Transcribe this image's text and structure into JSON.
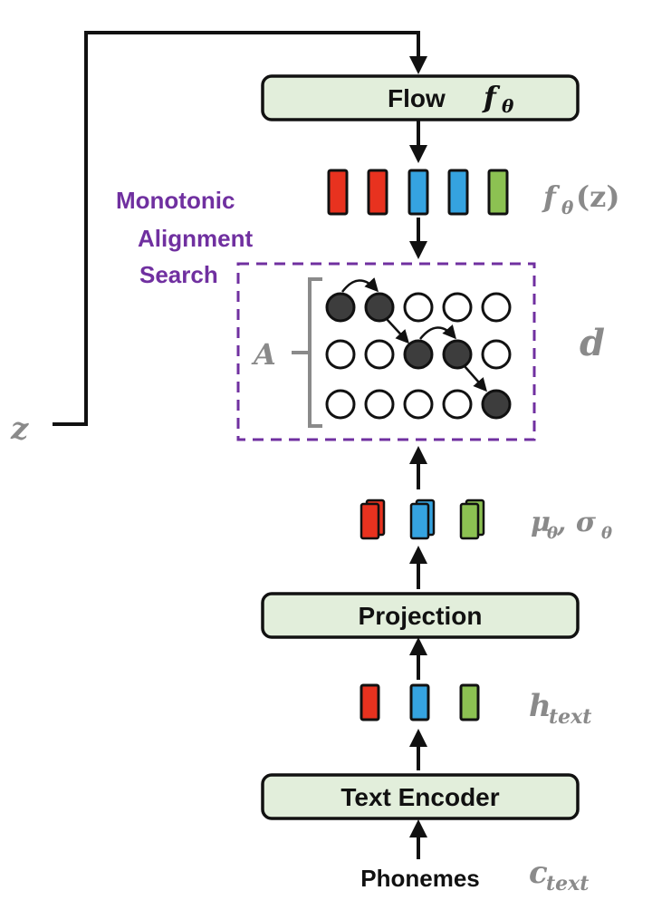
{
  "boxes": {
    "flow": "Flow",
    "flow_symbol": "f",
    "flow_symbol_sub": "θ",
    "projection": "Projection",
    "text_encoder": "Text Encoder"
  },
  "labels": {
    "z": "z",
    "fz_f": "f",
    "fz_theta": "θ",
    "fz_arg": "(z)",
    "mas_line1": "Monotonic",
    "mas_line2": "Alignment",
    "mas_line3": "Search",
    "A": "A",
    "d": "d",
    "mu": "μ",
    "mu_sub": "θ",
    "sigma": ", σ",
    "sigma_sub": "θ",
    "h": "h",
    "h_sub": "text",
    "c": "c",
    "c_sub": "text",
    "phonemes": "Phonemes"
  },
  "colors": {
    "red": "#e8321f",
    "blue": "#35a3e0",
    "green": "#8cc152",
    "box_fill": "#e2eedb",
    "purple": "#7030a0",
    "gray": "#8a8a8a",
    "circle_filled": "#3d3d3d"
  },
  "alignment_matrix": [
    [
      1,
      1,
      0,
      0,
      0
    ],
    [
      0,
      0,
      1,
      1,
      0
    ],
    [
      0,
      0,
      0,
      0,
      1
    ]
  ]
}
